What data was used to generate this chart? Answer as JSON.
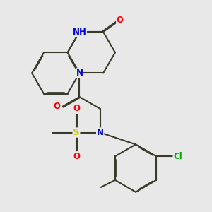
{
  "bg_color": "#e8e8e8",
  "bond_color": "#3a3a2a",
  "bond_width": 1.5,
  "dbo": 0.035,
  "atom_colors": {
    "N": "#0000cc",
    "O": "#ff0000",
    "S": "#cccc00",
    "Cl": "#00aa00",
    "H": "#4488aa",
    "C": "#3a3a2a"
  },
  "font_size": 8.5,
  "fig_size": [
    3.0,
    3.0
  ],
  "dpi": 100
}
